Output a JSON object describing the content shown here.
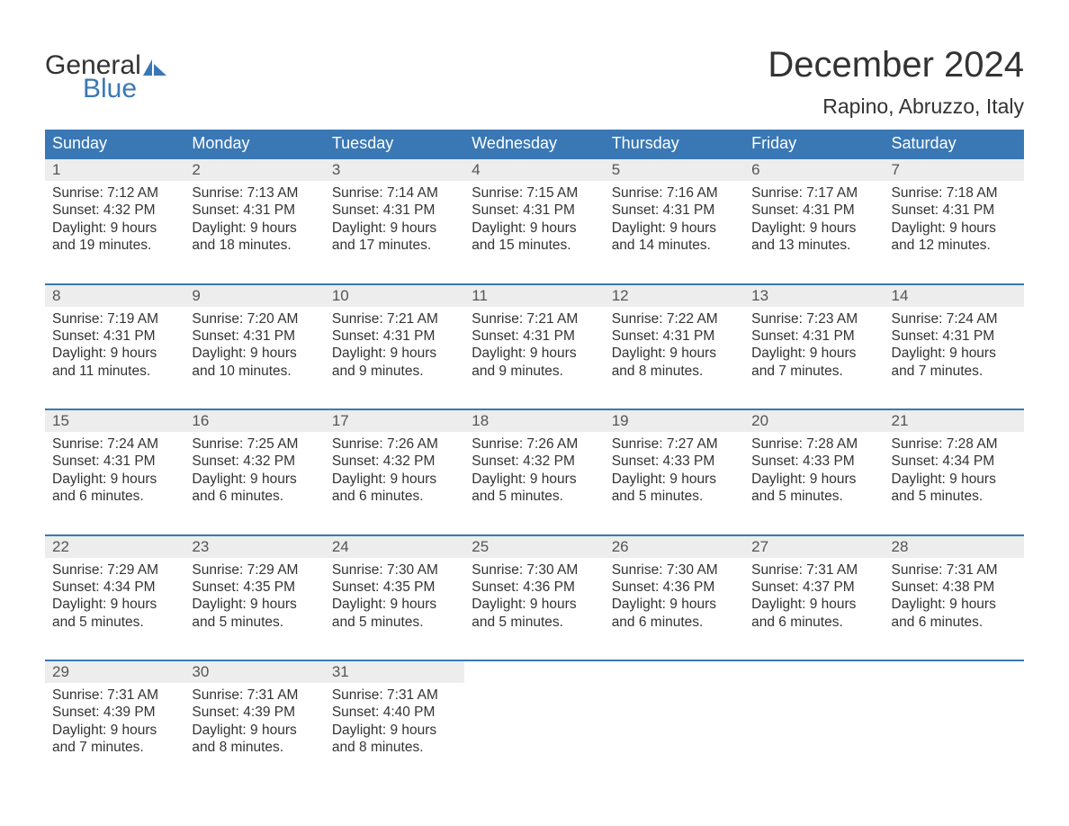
{
  "logo": {
    "word1": "General",
    "word2": "Blue",
    "sail_color": "#3a78b5"
  },
  "title": "December 2024",
  "location": "Rapino, Abruzzo, Italy",
  "colors": {
    "header_bg": "#3a78b5",
    "header_text": "#ffffff",
    "daynum_bg": "#ededed",
    "row_border": "#3a78b5",
    "body_text": "#333333",
    "page_bg": "#ffffff"
  },
  "day_labels": [
    "Sunday",
    "Monday",
    "Tuesday",
    "Wednesday",
    "Thursday",
    "Friday",
    "Saturday"
  ],
  "weeks": [
    [
      {
        "num": "1",
        "sunrise": "Sunrise: 7:12 AM",
        "sunset": "Sunset: 4:32 PM",
        "daylight1": "Daylight: 9 hours",
        "daylight2": "and 19 minutes."
      },
      {
        "num": "2",
        "sunrise": "Sunrise: 7:13 AM",
        "sunset": "Sunset: 4:31 PM",
        "daylight1": "Daylight: 9 hours",
        "daylight2": "and 18 minutes."
      },
      {
        "num": "3",
        "sunrise": "Sunrise: 7:14 AM",
        "sunset": "Sunset: 4:31 PM",
        "daylight1": "Daylight: 9 hours",
        "daylight2": "and 17 minutes."
      },
      {
        "num": "4",
        "sunrise": "Sunrise: 7:15 AM",
        "sunset": "Sunset: 4:31 PM",
        "daylight1": "Daylight: 9 hours",
        "daylight2": "and 15 minutes."
      },
      {
        "num": "5",
        "sunrise": "Sunrise: 7:16 AM",
        "sunset": "Sunset: 4:31 PM",
        "daylight1": "Daylight: 9 hours",
        "daylight2": "and 14 minutes."
      },
      {
        "num": "6",
        "sunrise": "Sunrise: 7:17 AM",
        "sunset": "Sunset: 4:31 PM",
        "daylight1": "Daylight: 9 hours",
        "daylight2": "and 13 minutes."
      },
      {
        "num": "7",
        "sunrise": "Sunrise: 7:18 AM",
        "sunset": "Sunset: 4:31 PM",
        "daylight1": "Daylight: 9 hours",
        "daylight2": "and 12 minutes."
      }
    ],
    [
      {
        "num": "8",
        "sunrise": "Sunrise: 7:19 AM",
        "sunset": "Sunset: 4:31 PM",
        "daylight1": "Daylight: 9 hours",
        "daylight2": "and 11 minutes."
      },
      {
        "num": "9",
        "sunrise": "Sunrise: 7:20 AM",
        "sunset": "Sunset: 4:31 PM",
        "daylight1": "Daylight: 9 hours",
        "daylight2": "and 10 minutes."
      },
      {
        "num": "10",
        "sunrise": "Sunrise: 7:21 AM",
        "sunset": "Sunset: 4:31 PM",
        "daylight1": "Daylight: 9 hours",
        "daylight2": "and 9 minutes."
      },
      {
        "num": "11",
        "sunrise": "Sunrise: 7:21 AM",
        "sunset": "Sunset: 4:31 PM",
        "daylight1": "Daylight: 9 hours",
        "daylight2": "and 9 minutes."
      },
      {
        "num": "12",
        "sunrise": "Sunrise: 7:22 AM",
        "sunset": "Sunset: 4:31 PM",
        "daylight1": "Daylight: 9 hours",
        "daylight2": "and 8 minutes."
      },
      {
        "num": "13",
        "sunrise": "Sunrise: 7:23 AM",
        "sunset": "Sunset: 4:31 PM",
        "daylight1": "Daylight: 9 hours",
        "daylight2": "and 7 minutes."
      },
      {
        "num": "14",
        "sunrise": "Sunrise: 7:24 AM",
        "sunset": "Sunset: 4:31 PM",
        "daylight1": "Daylight: 9 hours",
        "daylight2": "and 7 minutes."
      }
    ],
    [
      {
        "num": "15",
        "sunrise": "Sunrise: 7:24 AM",
        "sunset": "Sunset: 4:31 PM",
        "daylight1": "Daylight: 9 hours",
        "daylight2": "and 6 minutes."
      },
      {
        "num": "16",
        "sunrise": "Sunrise: 7:25 AM",
        "sunset": "Sunset: 4:32 PM",
        "daylight1": "Daylight: 9 hours",
        "daylight2": "and 6 minutes."
      },
      {
        "num": "17",
        "sunrise": "Sunrise: 7:26 AM",
        "sunset": "Sunset: 4:32 PM",
        "daylight1": "Daylight: 9 hours",
        "daylight2": "and 6 minutes."
      },
      {
        "num": "18",
        "sunrise": "Sunrise: 7:26 AM",
        "sunset": "Sunset: 4:32 PM",
        "daylight1": "Daylight: 9 hours",
        "daylight2": "and 5 minutes."
      },
      {
        "num": "19",
        "sunrise": "Sunrise: 7:27 AM",
        "sunset": "Sunset: 4:33 PM",
        "daylight1": "Daylight: 9 hours",
        "daylight2": "and 5 minutes."
      },
      {
        "num": "20",
        "sunrise": "Sunrise: 7:28 AM",
        "sunset": "Sunset: 4:33 PM",
        "daylight1": "Daylight: 9 hours",
        "daylight2": "and 5 minutes."
      },
      {
        "num": "21",
        "sunrise": "Sunrise: 7:28 AM",
        "sunset": "Sunset: 4:34 PM",
        "daylight1": "Daylight: 9 hours",
        "daylight2": "and 5 minutes."
      }
    ],
    [
      {
        "num": "22",
        "sunrise": "Sunrise: 7:29 AM",
        "sunset": "Sunset: 4:34 PM",
        "daylight1": "Daylight: 9 hours",
        "daylight2": "and 5 minutes."
      },
      {
        "num": "23",
        "sunrise": "Sunrise: 7:29 AM",
        "sunset": "Sunset: 4:35 PM",
        "daylight1": "Daylight: 9 hours",
        "daylight2": "and 5 minutes."
      },
      {
        "num": "24",
        "sunrise": "Sunrise: 7:30 AM",
        "sunset": "Sunset: 4:35 PM",
        "daylight1": "Daylight: 9 hours",
        "daylight2": "and 5 minutes."
      },
      {
        "num": "25",
        "sunrise": "Sunrise: 7:30 AM",
        "sunset": "Sunset: 4:36 PM",
        "daylight1": "Daylight: 9 hours",
        "daylight2": "and 5 minutes."
      },
      {
        "num": "26",
        "sunrise": "Sunrise: 7:30 AM",
        "sunset": "Sunset: 4:36 PM",
        "daylight1": "Daylight: 9 hours",
        "daylight2": "and 6 minutes."
      },
      {
        "num": "27",
        "sunrise": "Sunrise: 7:31 AM",
        "sunset": "Sunset: 4:37 PM",
        "daylight1": "Daylight: 9 hours",
        "daylight2": "and 6 minutes."
      },
      {
        "num": "28",
        "sunrise": "Sunrise: 7:31 AM",
        "sunset": "Sunset: 4:38 PM",
        "daylight1": "Daylight: 9 hours",
        "daylight2": "and 6 minutes."
      }
    ],
    [
      {
        "num": "29",
        "sunrise": "Sunrise: 7:31 AM",
        "sunset": "Sunset: 4:39 PM",
        "daylight1": "Daylight: 9 hours",
        "daylight2": "and 7 minutes."
      },
      {
        "num": "30",
        "sunrise": "Sunrise: 7:31 AM",
        "sunset": "Sunset: 4:39 PM",
        "daylight1": "Daylight: 9 hours",
        "daylight2": "and 8 minutes."
      },
      {
        "num": "31",
        "sunrise": "Sunrise: 7:31 AM",
        "sunset": "Sunset: 4:40 PM",
        "daylight1": "Daylight: 9 hours",
        "daylight2": "and 8 minutes."
      },
      null,
      null,
      null,
      null
    ]
  ]
}
